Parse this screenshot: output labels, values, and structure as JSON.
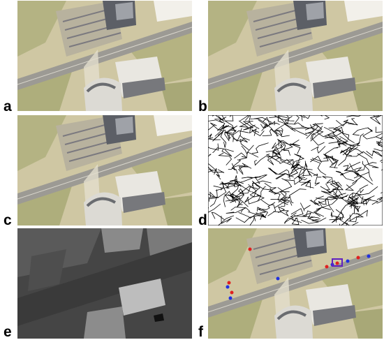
{
  "panels": [
    {
      "label": "a"
    },
    {
      "label": "b"
    },
    {
      "label": "c"
    },
    {
      "label": "d"
    },
    {
      "label": "e"
    },
    {
      "label": "f"
    }
  ]
}
